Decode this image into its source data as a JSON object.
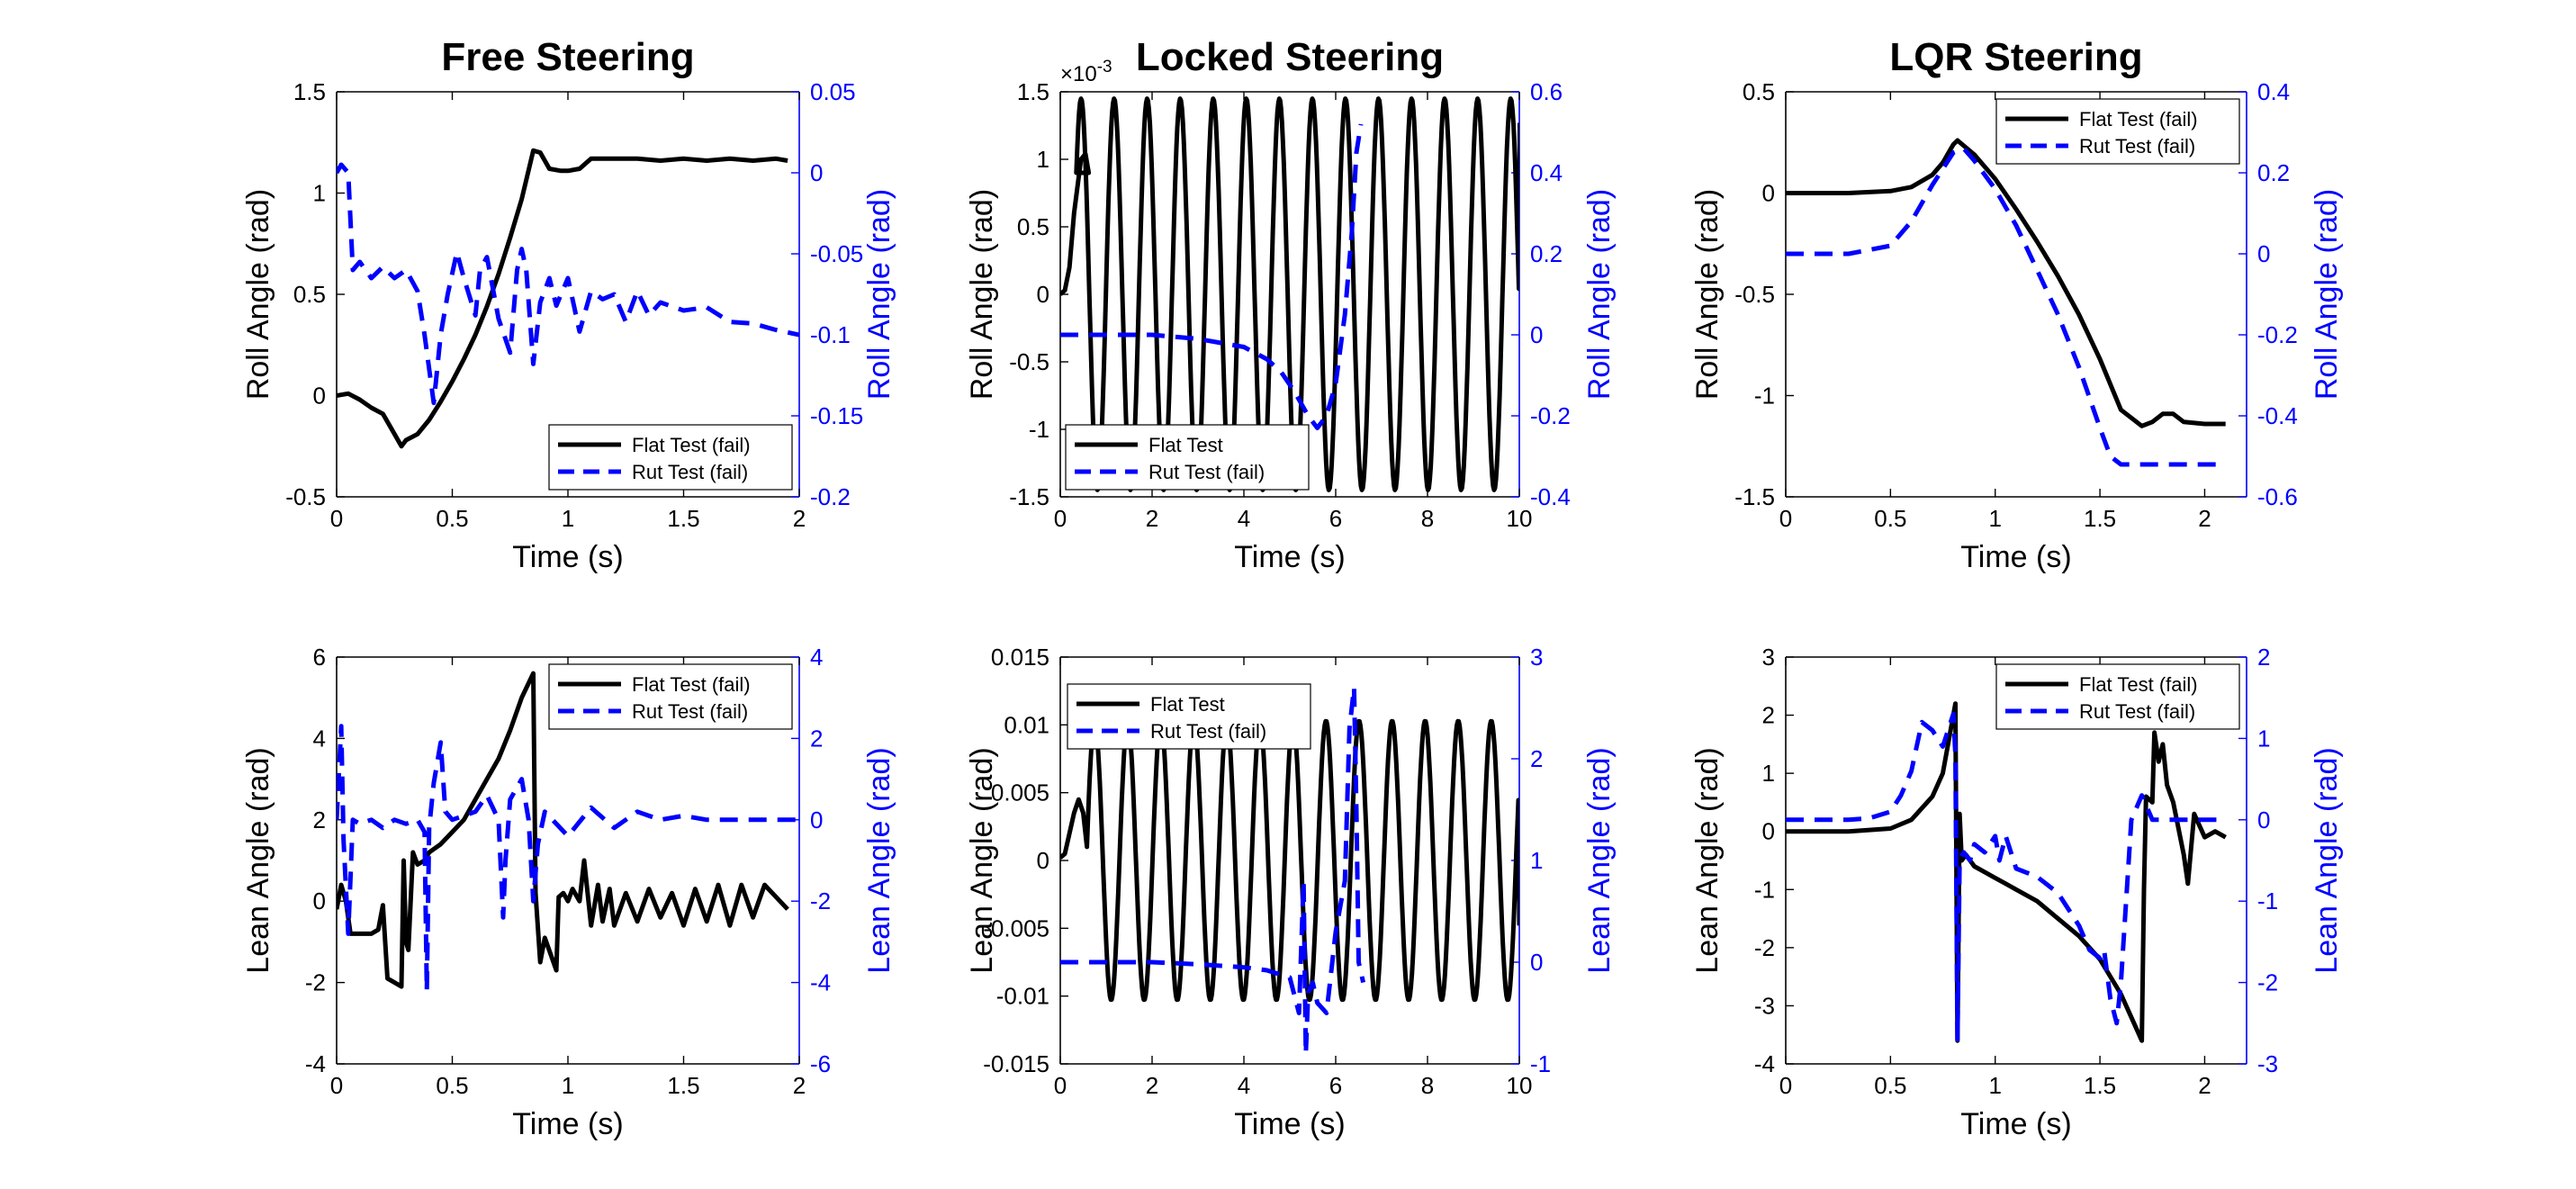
{
  "figure": {
    "colors": {
      "primary": "#000000",
      "secondary": "#0000ff"
    }
  },
  "chart_data": [
    {
      "id": "free-roll",
      "type": "line",
      "title": "Free Steering",
      "xlabel": "Time (s)",
      "ylabel": "Roll Angle (rad)",
      "ylabel_right": "Roll Angle (rad)",
      "xlim": [
        0,
        2
      ],
      "ylim": [
        -0.5,
        1.5
      ],
      "ylim_right": [
        -0.2,
        0.05
      ],
      "xticks": [
        "0",
        "0.5",
        "1",
        "1.5",
        "2"
      ],
      "yticks": [
        "-0.5",
        "0",
        "0.5",
        "1",
        "1.5"
      ],
      "yticks_right": [
        "-0.2",
        "-0.15",
        "-0.1",
        "-0.05",
        "0",
        "0.05"
      ],
      "legend_position": "bottom-right",
      "series": [
        {
          "name": "Flat Test (fail)",
          "axis": "left",
          "style": "solid",
          "color": "#000000",
          "x": [
            0,
            0.05,
            0.1,
            0.15,
            0.2,
            0.25,
            0.28,
            0.3,
            0.35,
            0.4,
            0.45,
            0.5,
            0.55,
            0.6,
            0.65,
            0.7,
            0.75,
            0.8,
            0.85,
            0.88,
            0.92,
            0.97,
            1.0,
            1.05,
            1.1,
            1.15,
            1.2,
            1.3,
            1.4,
            1.5,
            1.6,
            1.7,
            1.8,
            1.9,
            1.95
          ],
          "y": [
            0,
            0.01,
            -0.02,
            -0.06,
            -0.09,
            -0.19,
            -0.25,
            -0.22,
            -0.19,
            -0.12,
            -0.03,
            0.07,
            0.18,
            0.3,
            0.44,
            0.6,
            0.78,
            0.97,
            1.21,
            1.2,
            1.12,
            1.11,
            1.11,
            1.12,
            1.17,
            1.17,
            1.17,
            1.17,
            1.16,
            1.17,
            1.16,
            1.17,
            1.16,
            1.17,
            1.16
          ]
        },
        {
          "name": "Rut Test (fail)",
          "axis": "right",
          "style": "dashed",
          "color": "#0000ff",
          "x": [
            0,
            0.02,
            0.05,
            0.07,
            0.1,
            0.15,
            0.2,
            0.25,
            0.3,
            0.35,
            0.38,
            0.42,
            0.45,
            0.48,
            0.52,
            0.55,
            0.6,
            0.62,
            0.65,
            0.7,
            0.75,
            0.78,
            0.8,
            0.82,
            0.85,
            0.88,
            0.92,
            0.95,
            1.0,
            1.05,
            1.1,
            1.15,
            1.2,
            1.25,
            1.3,
            1.35,
            1.4,
            1.5,
            1.6,
            1.7,
            1.8,
            1.9,
            2.0
          ],
          "y": [
            0,
            0.005,
            0,
            -0.06,
            -0.055,
            -0.065,
            -0.058,
            -0.065,
            -0.06,
            -0.073,
            -0.1,
            -0.142,
            -0.1,
            -0.075,
            -0.049,
            -0.065,
            -0.088,
            -0.06,
            -0.052,
            -0.09,
            -0.111,
            -0.06,
            -0.047,
            -0.06,
            -0.118,
            -0.08,
            -0.065,
            -0.082,
            -0.065,
            -0.098,
            -0.073,
            -0.078,
            -0.075,
            -0.092,
            -0.073,
            -0.088,
            -0.08,
            -0.085,
            -0.083,
            -0.092,
            -0.093,
            -0.097,
            -0.1
          ]
        }
      ]
    },
    {
      "id": "locked-roll",
      "type": "line",
      "title": "Locked Steering",
      "xlabel": "Time (s)",
      "ylabel": "Roll Angle (rad)",
      "ylabel_right": "Roll Angle (rad)",
      "exponent_label": "×10",
      "exponent_power": "-3",
      "xlim": [
        0,
        10
      ],
      "ylim": [
        -1.5,
        1.5
      ],
      "ylim_right": [
        -0.4,
        0.6
      ],
      "xticks": [
        "0",
        "2",
        "4",
        "6",
        "8",
        "10"
      ],
      "yticks": [
        "-1.5",
        "-1",
        "-0.5",
        "0",
        "0.5",
        "1",
        "1.5"
      ],
      "yticks_right": [
        "-0.4",
        "-0.2",
        "0",
        "0.2",
        "0.4",
        "0.6"
      ],
      "legend_position": "bottom-left",
      "sine": {
        "amp": 1.45,
        "period": 0.72,
        "start": 0.35,
        "end": 10.0,
        "last": 1.27
      },
      "series": [
        {
          "name": "Flat Test",
          "axis": "left",
          "style": "solid",
          "color": "#000000",
          "x": [
            0,
            0.1,
            0.2,
            0.3,
            0.45,
            0.55,
            0.62
          ],
          "y": [
            0,
            0.03,
            0.2,
            0.6,
            1.0,
            1.04,
            0.9
          ]
        },
        {
          "name": "Rut Test (fail)",
          "axis": "right",
          "style": "dashed",
          "color": "#0000ff",
          "x": [
            0,
            1,
            2,
            3,
            3.5,
            4,
            4.5,
            4.8,
            5.1,
            5.4,
            5.6,
            5.8,
            6.0,
            6.2,
            6.35,
            6.45,
            6.55
          ],
          "y": [
            0,
            0,
            0,
            -0.01,
            -0.02,
            -0.03,
            -0.06,
            -0.09,
            -0.14,
            -0.2,
            -0.23,
            -0.2,
            -0.12,
            0.05,
            0.25,
            0.45,
            0.52
          ]
        }
      ]
    },
    {
      "id": "lqr-roll",
      "type": "line",
      "title": "LQR Steering",
      "xlabel": "Time (s)",
      "ylabel": "Roll Angle (rad)",
      "ylabel_right": "Roll Angle (rad)",
      "xlim": [
        0,
        2.2
      ],
      "ylim": [
        -1.5,
        0.5
      ],
      "ylim_right": [
        -0.6,
        0.4
      ],
      "xticks": [
        "0",
        "0.5",
        "1",
        "1.5",
        "2"
      ],
      "yticks": [
        "-1.5",
        "-1",
        "-0.5",
        "0",
        "0.5"
      ],
      "yticks_right": [
        "-0.6",
        "-0.4",
        "-0.2",
        "0",
        "0.2",
        "0.4"
      ],
      "legend_position": "top-right",
      "series": [
        {
          "name": "Flat Test (fail)",
          "axis": "left",
          "style": "solid",
          "color": "#000000",
          "x": [
            0,
            0.3,
            0.5,
            0.6,
            0.7,
            0.75,
            0.8,
            0.82,
            0.9,
            1.0,
            1.1,
            1.2,
            1.3,
            1.4,
            1.5,
            1.6,
            1.7,
            1.75,
            1.8,
            1.85,
            1.9,
            2.0,
            2.1
          ],
          "y": [
            0,
            0,
            0.01,
            0.03,
            0.09,
            0.15,
            0.24,
            0.26,
            0.19,
            0.07,
            -0.08,
            -0.24,
            -0.41,
            -0.6,
            -0.82,
            -1.07,
            -1.15,
            -1.13,
            -1.09,
            -1.09,
            -1.13,
            -1.14,
            -1.14
          ]
        },
        {
          "name": "Rut Test (fail)",
          "axis": "right",
          "style": "dashed",
          "color": "#0000ff",
          "x": [
            0,
            0.3,
            0.5,
            0.6,
            0.7,
            0.8,
            0.85,
            0.9,
            1.0,
            1.1,
            1.2,
            1.3,
            1.4,
            1.5,
            1.55,
            1.6,
            1.65,
            1.7,
            1.8,
            1.9,
            2.0,
            2.1
          ],
          "y": [
            0,
            0,
            0.02,
            0.08,
            0.17,
            0.25,
            0.26,
            0.23,
            0.16,
            0.07,
            -0.04,
            -0.15,
            -0.28,
            -0.43,
            -0.5,
            -0.52,
            -0.52,
            -0.52,
            -0.52,
            -0.52,
            -0.52,
            -0.52
          ]
        }
      ]
    },
    {
      "id": "free-lean",
      "type": "line",
      "title": "",
      "xlabel": "Time (s)",
      "ylabel": "Lean Angle (rad)",
      "ylabel_right": "Lean Angle (rad)",
      "xlim": [
        0,
        2
      ],
      "ylim": [
        -4,
        6
      ],
      "ylim_right": [
        -6,
        4
      ],
      "xticks": [
        "0",
        "0.5",
        "1",
        "1.5",
        "2"
      ],
      "yticks": [
        "-4",
        "-2",
        "0",
        "2",
        "4",
        "6"
      ],
      "yticks_right": [
        "-6",
        "-4",
        "-2",
        "0",
        "2",
        "4"
      ],
      "legend_position": "top-right",
      "series": [
        {
          "name": "Flat Test (fail)",
          "axis": "left",
          "style": "solid",
          "color": "#000000",
          "x": [
            0,
            0.02,
            0.04,
            0.06,
            0.1,
            0.15,
            0.18,
            0.2,
            0.22,
            0.25,
            0.28,
            0.29,
            0.3,
            0.31,
            0.33,
            0.35,
            0.38,
            0.4,
            0.45,
            0.5,
            0.55,
            0.6,
            0.65,
            0.7,
            0.75,
            0.8,
            0.85,
            0.86,
            0.88,
            0.9,
            0.95,
            0.96,
            0.98,
            1.0,
            1.02,
            1.05,
            1.07,
            1.1,
            1.13,
            1.15,
            1.18,
            1.2,
            1.25,
            1.3,
            1.35,
            1.4,
            1.45,
            1.5,
            1.55,
            1.6,
            1.65,
            1.7,
            1.75,
            1.8,
            1.85,
            1.9,
            1.95
          ],
          "y": [
            -0.2,
            0.4,
            0,
            -0.8,
            -0.8,
            -0.8,
            -0.7,
            -0.1,
            -1.9,
            -2.0,
            -2.1,
            1.0,
            -1.0,
            -1.2,
            1.2,
            0.9,
            1.0,
            1.2,
            1.4,
            1.7,
            2.0,
            2.5,
            3.0,
            3.5,
            4.2,
            5.0,
            5.6,
            0.2,
            -1.5,
            -0.9,
            -1.7,
            0.1,
            0.2,
            0,
            0.3,
            0,
            1.0,
            -0.6,
            0.4,
            -0.5,
            0.3,
            -0.6,
            0.2,
            -0.5,
            0.3,
            -0.4,
            0.2,
            -0.6,
            0.3,
            -0.5,
            0.4,
            -0.6,
            0.4,
            -0.4,
            0.4,
            0.1,
            -0.2
          ]
        },
        {
          "name": "Rut Test (fail)",
          "axis": "right",
          "style": "dashed",
          "color": "#0000ff",
          "x": [
            0,
            0.02,
            0.03,
            0.05,
            0.07,
            0.1,
            0.15,
            0.2,
            0.25,
            0.3,
            0.35,
            0.38,
            0.39,
            0.4,
            0.42,
            0.45,
            0.47,
            0.5,
            0.55,
            0.6,
            0.65,
            0.7,
            0.72,
            0.73,
            0.75,
            0.8,
            0.83,
            0.85,
            0.87,
            0.9,
            1.0,
            1.1,
            1.2,
            1.3,
            1.4,
            1.5,
            1.6,
            1.7,
            1.8,
            1.9,
            2.0
          ],
          "y": [
            0,
            2.3,
            -0.5,
            -2.8,
            0,
            -0.1,
            0,
            -0.2,
            0,
            -0.1,
            0,
            -0.3,
            -4.2,
            -0.2,
            0.9,
            1.9,
            0.2,
            0,
            0.1,
            0.2,
            0.6,
            0,
            -2.4,
            -1.0,
            0.5,
            1.0,
            0,
            -2.0,
            -0.6,
            0.2,
            -0.4,
            0.3,
            -0.2,
            0.2,
            0,
            0.1,
            0,
            0,
            0,
            0,
            0
          ]
        }
      ]
    },
    {
      "id": "locked-lean",
      "type": "line",
      "title": "",
      "xlabel": "Time (s)",
      "ylabel": "Lean Angle (rad)",
      "ylabel_right": "Lean Angle (rad)",
      "xlim": [
        0,
        10
      ],
      "ylim": [
        -0.015,
        0.015
      ],
      "ylim_right": [
        -1,
        3
      ],
      "xticks": [
        "0",
        "2",
        "4",
        "6",
        "8",
        "10"
      ],
      "yticks": [
        "-0.015",
        "-0.01",
        "-0.005",
        "0",
        "0.005",
        "0.01",
        "0.015"
      ],
      "yticks_right": [
        "-1",
        "0",
        "1",
        "2",
        "3"
      ],
      "legend_position": "top-left",
      "sine": {
        "amp": 0.0103,
        "period": 0.72,
        "start": 0.58,
        "end": 10.0,
        "last": -0.0048
      },
      "series": [
        {
          "name": "Flat Test",
          "axis": "left",
          "style": "solid",
          "color": "#000000",
          "x": [
            0,
            0.1,
            0.2,
            0.3,
            0.4,
            0.5,
            0.58
          ],
          "y": [
            0.0002,
            0.0005,
            0.002,
            0.0035,
            0.0045,
            0.0035,
            0.001
          ]
        },
        {
          "name": "Rut Test (fail)",
          "axis": "right",
          "style": "dashed",
          "color": "#0000ff",
          "x": [
            0,
            1,
            2,
            3,
            4,
            4.5,
            5.0,
            5.2,
            5.3,
            5.35,
            5.4,
            5.5,
            5.6,
            5.8,
            6.0,
            6.2,
            6.3,
            6.4,
            6.45,
            6.5,
            6.6
          ],
          "y": [
            0,
            0,
            0,
            -0.02,
            -0.05,
            -0.08,
            -0.15,
            -0.5,
            0.8,
            -0.9,
            -0.3,
            -0.2,
            -0.4,
            -0.5,
            0.3,
            0.8,
            2.3,
            2.7,
            1.5,
            0,
            -0.2
          ]
        }
      ]
    },
    {
      "id": "lqr-lean",
      "type": "line",
      "title": "",
      "xlabel": "Time (s)",
      "ylabel": "Lean Angle (rad)",
      "ylabel_right": "Lean Angle (rad)",
      "xlim": [
        0,
        2.2
      ],
      "ylim": [
        -4,
        3
      ],
      "ylim_right": [
        -3,
        2
      ],
      "xticks": [
        "0",
        "0.5",
        "1",
        "1.5",
        "2"
      ],
      "yticks": [
        "-4",
        "-3",
        "-2",
        "-1",
        "0",
        "1",
        "2",
        "3"
      ],
      "yticks_right": [
        "-3",
        "-2",
        "-1",
        "0",
        "1",
        "2"
      ],
      "legend_position": "top-right",
      "series": [
        {
          "name": "Flat Test (fail)",
          "axis": "left",
          "style": "solid",
          "color": "#000000",
          "x": [
            0,
            0.3,
            0.5,
            0.6,
            0.7,
            0.75,
            0.8,
            0.81,
            0.82,
            0.83,
            0.84,
            0.86,
            0.9,
            0.95,
            1.0,
            1.05,
            1.1,
            1.2,
            1.3,
            1.4,
            1.5,
            1.6,
            1.65,
            1.7,
            1.71,
            1.72,
            1.75,
            1.76,
            1.78,
            1.8,
            1.82,
            1.85,
            1.9,
            1.92,
            1.95,
            2.0,
            2.05,
            2.1
          ],
          "y": [
            0,
            0,
            0.05,
            0.2,
            0.6,
            1.0,
            2.0,
            2.2,
            -3.6,
            0.3,
            -0.5,
            -0.4,
            -0.6,
            -0.7,
            -0.8,
            -0.9,
            -1.0,
            -1.2,
            -1.5,
            -1.8,
            -2.2,
            -2.8,
            -3.2,
            -3.6,
            -1.0,
            0.6,
            0.5,
            1.7,
            1.2,
            1.5,
            0.8,
            0.5,
            -0.4,
            -0.9,
            0.3,
            -0.1,
            0,
            -0.1
          ]
        },
        {
          "name": "Rut Test (fail)",
          "axis": "right",
          "style": "dashed",
          "color": "#0000ff",
          "x": [
            0,
            0.3,
            0.4,
            0.5,
            0.55,
            0.6,
            0.65,
            0.7,
            0.75,
            0.8,
            0.81,
            0.82,
            0.83,
            0.85,
            0.88,
            0.9,
            0.95,
            1.0,
            1.02,
            1.05,
            1.1,
            1.2,
            1.3,
            1.4,
            1.45,
            1.5,
            1.52,
            1.55,
            1.58,
            1.6,
            1.62,
            1.65,
            1.7,
            1.75,
            1.8,
            1.9,
            2.0,
            2.1
          ],
          "y": [
            0,
            0,
            0.02,
            0.1,
            0.3,
            0.6,
            1.2,
            1.1,
            0.9,
            1.3,
            0.8,
            -2.7,
            -0.5,
            -0.4,
            -0.5,
            -0.3,
            -0.4,
            -0.2,
            -0.5,
            -0.2,
            -0.6,
            -0.7,
            -0.9,
            -1.3,
            -1.6,
            -1.7,
            -1.6,
            -2.2,
            -2.5,
            -2.0,
            -1.2,
            0,
            0.3,
            0,
            0,
            0,
            0,
            0
          ]
        }
      ]
    }
  ]
}
